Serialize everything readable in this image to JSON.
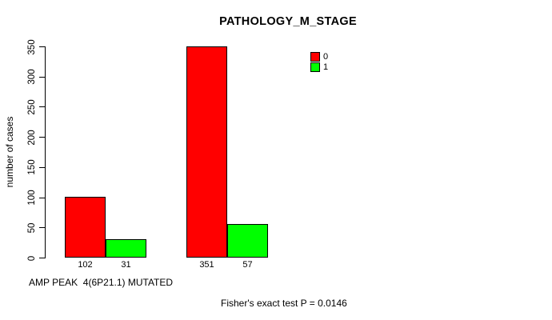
{
  "chart_data": {
    "type": "bar",
    "title": "PATHOLOGY_M_STAGE",
    "ylabel": "number of cases",
    "xlabel": "AMP PEAK  4(6P21.1) MUTATED",
    "annotation": "Fisher's exact test P = 0.0146",
    "categories": [
      "",
      ""
    ],
    "series": [
      {
        "name": "0",
        "color": "#FF0000",
        "values": [
          102,
          351
        ]
      },
      {
        "name": "1",
        "color": "#00FF00",
        "values": [
          31,
          57
        ]
      }
    ],
    "ylim": [
      0,
      350
    ],
    "yticks": [
      0,
      50,
      100,
      150,
      200,
      250,
      300,
      350
    ],
    "grid": false,
    "bar_value_labels": true,
    "legend_position": "top-right"
  },
  "colors": {
    "background": "#FFFFFF",
    "text": "#000000",
    "axis": "#000000",
    "bar_border": "#000000",
    "series_0": "#FF0000",
    "series_1": "#00FF00"
  }
}
